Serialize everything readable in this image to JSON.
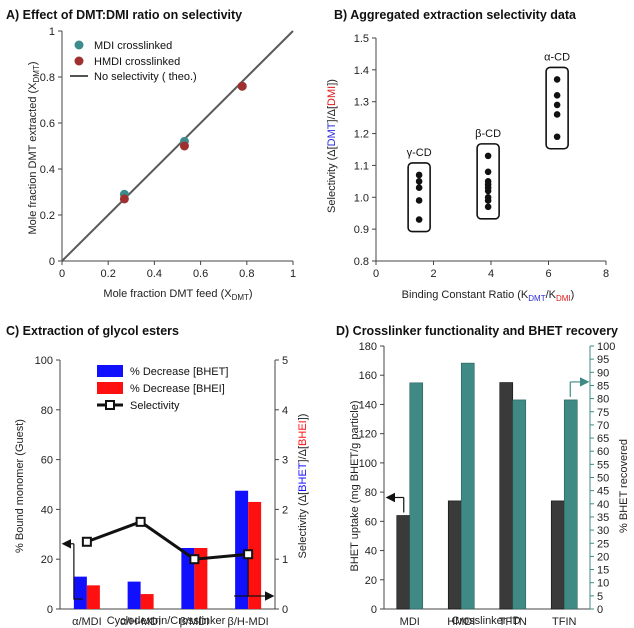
{
  "panels": {
    "a": {
      "title": "A) Effect of DMT:DMI ratio on selectivity"
    },
    "b": {
      "title": "B) Aggregated extraction selectivity data"
    },
    "c": {
      "title": "C) Extraction of glycol esters"
    },
    "d": {
      "title": "D) Crosslinker functionality and BHET recovery"
    }
  },
  "colors": {
    "mdi": "#3d8c8c",
    "hmdi": "#a03030",
    "bhet_blue": "#1010ff",
    "bhei_red": "#ff1010",
    "bar_dark": "#3a3a3a",
    "bar_teal": "#3f8a85",
    "teal_axis": "#3f8a85"
  },
  "chart_data": [
    {
      "id": "a",
      "type": "scatter",
      "title": "A) Effect of DMT:DMI ratio on selectivity",
      "xlabel": "Mole fraction DMT feed (X",
      "xlabel_sub": "DMT",
      "xlabel_end": ")",
      "ylabel": "Mole fraction DMT extracted (X",
      "ylabel_sub": "DMT",
      "ylabel_end": ")",
      "xlim": [
        0,
        1
      ],
      "ylim": [
        0,
        1
      ],
      "xticks": [
        "0",
        "0.2",
        "0.4",
        "0.6",
        "0.8",
        "1"
      ],
      "yticks": [
        "0",
        "0.2",
        "0.4",
        "0.6",
        "0.8",
        "1"
      ],
      "legend_position": "top-left",
      "series": [
        {
          "name": "MDI crosslinked",
          "x": [
            0.27,
            0.53,
            0.78
          ],
          "y": [
            0.29,
            0.52,
            0.76
          ]
        },
        {
          "name": "HMDI crosslinked",
          "x": [
            0.27,
            0.53,
            0.78
          ],
          "y": [
            0.27,
            0.5,
            0.76
          ]
        },
        {
          "name": "No selectivity ( theo.)",
          "x": [
            0,
            1
          ],
          "y": [
            0,
            1
          ]
        }
      ]
    },
    {
      "id": "b",
      "type": "scatter",
      "title": "B) Aggregated extraction selectivity data",
      "xlabel": "Binding Constant Ratio (K",
      "xlabel_sub1": "DMT",
      "xlabel_mid": "/K",
      "xlabel_sub2": "DMI",
      "xlabel_end": ")",
      "ylabel_pre": "Selectivity (Δ[",
      "ylabel_dmt": "DMT",
      "ylabel_mid": "]/Δ[",
      "ylabel_dmi": "DMI",
      "ylabel_end": "])",
      "xlim": [
        0,
        8
      ],
      "ylim": [
        0.8,
        1.5
      ],
      "xticks": [
        "0",
        "2",
        "4",
        "6",
        "8"
      ],
      "yticks": [
        "0.8",
        "0.9",
        "1.0",
        "1.1",
        "1.2",
        "1.3",
        "1.4",
        "1.5"
      ],
      "groups": [
        {
          "label": "γ-CD",
          "x": 1.5,
          "y": [
            0.93,
            0.99,
            1.03,
            1.05,
            1.07
          ]
        },
        {
          "label": "β-CD",
          "x": 3.9,
          "y": [
            0.97,
            0.99,
            1.0,
            1.02,
            1.03,
            1.04,
            1.05,
            1.08,
            1.13
          ]
        },
        {
          "label": "α-CD",
          "x": 6.3,
          "y": [
            1.19,
            1.26,
            1.29,
            1.32,
            1.37
          ]
        }
      ]
    },
    {
      "id": "c",
      "type": "bar",
      "title": "C) Extraction of glycol esters",
      "categories": [
        "α/MDI",
        "α/H-MDI",
        "β/MDI",
        "β/H-MDI"
      ],
      "xlabel": "Cyclodextrin/Crosslinker",
      "ylabel": "% Bound monomer (Guest)",
      "ylabel_right_pre": "Selectivity (Δ[",
      "ylabel_right_bhet": "BHET",
      "ylabel_right_mid": "]/Δ[",
      "ylabel_right_bhei": "BHEI",
      "ylabel_right_end": "])",
      "ylim": [
        0,
        100
      ],
      "ylim_right": [
        0,
        5
      ],
      "yticks": [
        "0",
        "20",
        "40",
        "60",
        "80",
        "100"
      ],
      "yticks_right": [
        "0",
        "1",
        "2",
        "3",
        "4",
        "5"
      ],
      "legend_position": "top-center",
      "series": [
        {
          "name": "% Decrease [BHET]",
          "values": [
            13,
            11,
            24.5,
            47.5
          ]
        },
        {
          "name": "% Decrease [BHEI]",
          "values": [
            9.5,
            6,
            24.5,
            43
          ]
        },
        {
          "name": "Selectivity",
          "axis": "right",
          "values": [
            1.35,
            1.75,
            1.0,
            1.1
          ]
        }
      ]
    },
    {
      "id": "d",
      "type": "bar",
      "title": "D) Crosslinker functionality and BHET recovery",
      "categories": [
        "MDI",
        "HMDI",
        "TFTN",
        "TFIN"
      ],
      "xlabel": "Crosslinker ID",
      "ylabel": "BHET uptake (mg BHET/g particle)",
      "ylabel_right": "% BHET recovered",
      "ylim": [
        0,
        180
      ],
      "ylim_right": [
        0,
        100
      ],
      "yticks": [
        "0",
        "20",
        "40",
        "60",
        "80",
        "100",
        "120",
        "140",
        "160",
        "180"
      ],
      "yticks_right": [
        "0",
        "5",
        "10",
        "15",
        "20",
        "25",
        "30",
        "35",
        "40",
        "45",
        "50",
        "55",
        "60",
        "65",
        "70",
        "75",
        "80",
        "85",
        "90",
        "95",
        "100"
      ],
      "series": [
        {
          "name": "BHET uptake",
          "axis": "left",
          "values": [
            64,
            74,
            155,
            74
          ]
        },
        {
          "name": "% BHET recovered",
          "axis": "right",
          "values": [
            86,
            93.5,
            79.5,
            79.5
          ]
        }
      ]
    }
  ]
}
